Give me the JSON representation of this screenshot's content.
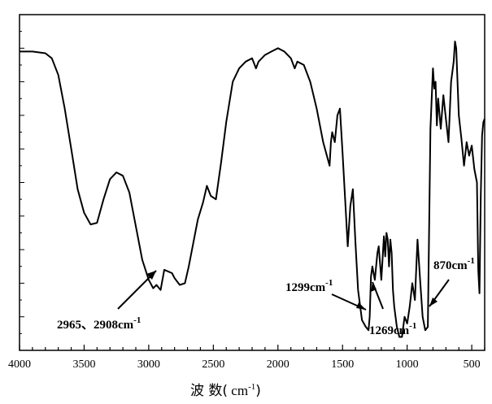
{
  "chart_data": {
    "type": "line",
    "title": "",
    "xlabel": "波 数( cm-1)",
    "xlabel_parts": {
      "main": "波 数(",
      "unit": " cm",
      "exp": "-1",
      "close": ")"
    },
    "ylabel": "",
    "xlim": [
      4000,
      400
    ],
    "ylim": [
      0,
      100
    ],
    "x_reversed": true,
    "grid": false,
    "x_ticks": [
      4000,
      3500,
      3000,
      2500,
      2000,
      1500,
      1000,
      500
    ],
    "series": [
      {
        "values": [
          [
            4000,
            89
          ],
          [
            3900,
            89
          ],
          [
            3800,
            88.5
          ],
          [
            3750,
            87
          ],
          [
            3700,
            82
          ],
          [
            3650,
            72
          ],
          [
            3600,
            60
          ],
          [
            3550,
            48
          ],
          [
            3500,
            41
          ],
          [
            3450,
            37.5
          ],
          [
            3400,
            38
          ],
          [
            3350,
            45
          ],
          [
            3300,
            51
          ],
          [
            3250,
            53
          ],
          [
            3200,
            52
          ],
          [
            3150,
            47
          ],
          [
            3100,
            37
          ],
          [
            3050,
            27
          ],
          [
            3000,
            21
          ],
          [
            2965,
            18.5
          ],
          [
            2940,
            19.5
          ],
          [
            2908,
            18
          ],
          [
            2880,
            24
          ],
          [
            2850,
            23.5
          ],
          [
            2820,
            23
          ],
          [
            2800,
            21.5
          ],
          [
            2760,
            19.5
          ],
          [
            2720,
            20
          ],
          [
            2690,
            25
          ],
          [
            2650,
            33
          ],
          [
            2620,
            39
          ],
          [
            2580,
            44
          ],
          [
            2550,
            49
          ],
          [
            2520,
            46
          ],
          [
            2480,
            45
          ],
          [
            2440,
            56
          ],
          [
            2400,
            68
          ],
          [
            2350,
            80
          ],
          [
            2300,
            84
          ],
          [
            2250,
            86
          ],
          [
            2200,
            87
          ],
          [
            2170,
            84
          ],
          [
            2150,
            86
          ],
          [
            2100,
            88
          ],
          [
            2050,
            89
          ],
          [
            2000,
            90
          ],
          [
            1950,
            89
          ],
          [
            1900,
            87
          ],
          [
            1870,
            84
          ],
          [
            1850,
            86
          ],
          [
            1800,
            85
          ],
          [
            1750,
            80
          ],
          [
            1700,
            72
          ],
          [
            1650,
            62
          ],
          [
            1600,
            55
          ],
          [
            1590,
            62
          ],
          [
            1580,
            65
          ],
          [
            1560,
            62
          ],
          [
            1540,
            70
          ],
          [
            1520,
            72
          ],
          [
            1500,
            59
          ],
          [
            1480,
            45
          ],
          [
            1460,
            31
          ],
          [
            1440,
            43
          ],
          [
            1420,
            48
          ],
          [
            1400,
            32
          ],
          [
            1380,
            18
          ],
          [
            1350,
            9
          ],
          [
            1320,
            7
          ],
          [
            1299,
            6
          ],
          [
            1290,
            10
          ],
          [
            1280,
            22
          ],
          [
            1269,
            25
          ],
          [
            1250,
            21
          ],
          [
            1230,
            29
          ],
          [
            1220,
            31
          ],
          [
            1210,
            26
          ],
          [
            1200,
            21
          ],
          [
            1180,
            34
          ],
          [
            1170,
            28
          ],
          [
            1160,
            35
          ],
          [
            1150,
            33
          ],
          [
            1140,
            25
          ],
          [
            1130,
            33
          ],
          [
            1120,
            29
          ],
          [
            1110,
            18
          ],
          [
            1100,
            13
          ],
          [
            1080,
            7
          ],
          [
            1060,
            4
          ],
          [
            1040,
            4
          ],
          [
            1020,
            10
          ],
          [
            1000,
            8
          ],
          [
            980,
            13
          ],
          [
            960,
            20
          ],
          [
            940,
            15
          ],
          [
            920,
            33
          ],
          [
            900,
            21
          ],
          [
            880,
            10
          ],
          [
            860,
            6
          ],
          [
            840,
            7
          ],
          [
            820,
            66
          ],
          [
            800,
            84
          ],
          [
            790,
            78
          ],
          [
            780,
            80
          ],
          [
            770,
            67
          ],
          [
            760,
            75
          ],
          [
            740,
            66
          ],
          [
            720,
            76
          ],
          [
            700,
            69
          ],
          [
            680,
            62
          ],
          [
            660,
            80
          ],
          [
            640,
            86
          ],
          [
            630,
            92
          ],
          [
            620,
            90
          ],
          [
            600,
            70
          ],
          [
            580,
            63
          ],
          [
            560,
            55
          ],
          [
            540,
            62
          ],
          [
            520,
            58
          ],
          [
            500,
            61
          ],
          [
            480,
            54
          ],
          [
            460,
            50
          ],
          [
            450,
            24
          ],
          [
            440,
            17
          ],
          [
            430,
            46
          ],
          [
            420,
            64
          ],
          [
            410,
            68
          ],
          [
            400,
            69
          ]
        ]
      }
    ],
    "annotations": [
      {
        "text": "2965、2908cm",
        "sup": "-1"
      },
      {
        "text": "1299cm",
        "sup": "-1"
      },
      {
        "text": "1269cm",
        "sup": "-1"
      },
      {
        "text": "870cm",
        "sup": "-1"
      }
    ]
  }
}
